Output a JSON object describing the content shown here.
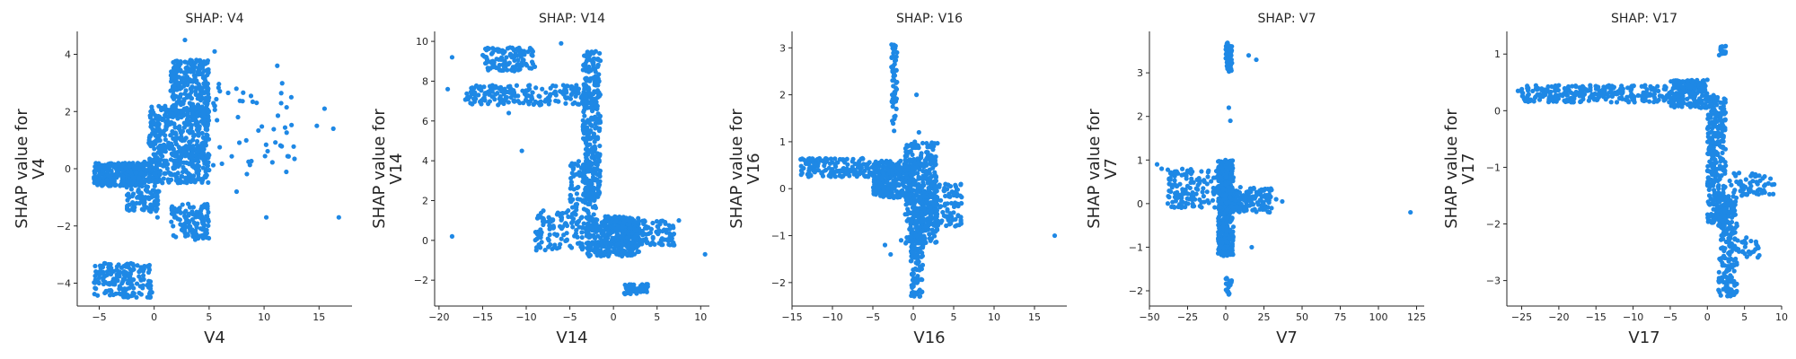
{
  "chart_data": [
    {
      "type": "scatter",
      "title": "SHAP: V4",
      "xlabel": "V4",
      "ylabel": [
        "SHAP value for",
        "V4"
      ],
      "xlim": [
        -7,
        18
      ],
      "ylim": [
        -4.8,
        4.8
      ],
      "xticks": [
        -5,
        0,
        5,
        10,
        15
      ],
      "yticks": [
        -4,
        -2,
        0,
        2,
        4
      ],
      "color": "#1e88e5",
      "clusters": [
        {
          "x": [
            -5.5,
            -1
          ],
          "y": [
            -0.6,
            0.2
          ],
          "n": 300
        },
        {
          "x": [
            -2.5,
            0.5
          ],
          "y": [
            -1.5,
            0.3
          ],
          "n": 160
        },
        {
          "x": [
            -0.5,
            5
          ],
          "y": [
            -0.5,
            2.2
          ],
          "n": 500
        },
        {
          "x": [
            1.5,
            5
          ],
          "y": [
            1.8,
            3.8
          ],
          "n": 260
        },
        {
          "x": [
            1.5,
            5
          ],
          "y": [
            -2.5,
            -1.2
          ],
          "n": 120
        },
        {
          "x": [
            -5.5,
            -0.2
          ],
          "y": [
            -4.5,
            -3.3
          ],
          "n": 170
        },
        {
          "x": [
            3,
            13
          ],
          "y": [
            -0.3,
            3
          ],
          "n": 80
        }
      ],
      "points": [
        [
          0.3,
          -1.7
        ],
        [
          7.5,
          -0.8
        ],
        [
          10.2,
          -1.7
        ],
        [
          15.5,
          2.1
        ],
        [
          16.3,
          1.4
        ],
        [
          16.8,
          -1.7
        ],
        [
          14.8,
          1.5
        ],
        [
          11.2,
          3.6
        ],
        [
          5.5,
          4.1
        ],
        [
          2.8,
          4.5
        ]
      ]
    },
    {
      "type": "scatter",
      "title": "SHAP: V14",
      "xlabel": "V14",
      "ylabel": [
        "SHAP value for",
        "V14"
      ],
      "xlim": [
        -20.5,
        11
      ],
      "ylim": [
        -3.3,
        10.5
      ],
      "xticks": [
        -20,
        -15,
        -10,
        -5,
        0,
        5,
        10
      ],
      "yticks": [
        -2,
        0,
        2,
        4,
        6,
        8,
        10
      ],
      "color": "#1e88e5",
      "clusters": [
        {
          "x": [
            -15,
            -9
          ],
          "y": [
            8.5,
            9.7
          ],
          "n": 120
        },
        {
          "x": [
            -17,
            -3
          ],
          "y": [
            6.8,
            7.8
          ],
          "n": 200
        },
        {
          "x": [
            -3.5,
            -1.5
          ],
          "y": [
            2,
            9.5
          ],
          "n": 320
        },
        {
          "x": [
            -9,
            -2
          ],
          "y": [
            -0.5,
            1.5
          ],
          "n": 150
        },
        {
          "x": [
            -3,
            3
          ],
          "y": [
            -0.8,
            1.2
          ],
          "n": 300
        },
        {
          "x": [
            -1,
            7
          ],
          "y": [
            -0.3,
            1
          ],
          "n": 180
        },
        {
          "x": [
            1,
            4
          ],
          "y": [
            -2.7,
            -2.2
          ],
          "n": 60
        },
        {
          "x": [
            -5,
            -2
          ],
          "y": [
            1.5,
            4
          ],
          "n": 80
        }
      ],
      "points": [
        [
          -18.5,
          9.2
        ],
        [
          -19,
          7.6
        ],
        [
          -18.5,
          0.2
        ],
        [
          -10.5,
          4.5
        ],
        [
          10.5,
          -0.7
        ],
        [
          7.5,
          1
        ],
        [
          -12,
          6.4
        ],
        [
          -6,
          9.9
        ]
      ]
    },
    {
      "type": "scatter",
      "title": "SHAP: V16",
      "xlabel": "V16",
      "ylabel": [
        "SHAP value for",
        "V16"
      ],
      "xlim": [
        -15,
        19
      ],
      "ylim": [
        -2.5,
        3.35
      ],
      "xticks": [
        -15,
        -10,
        -5,
        0,
        5,
        10,
        15
      ],
      "yticks": [
        -2,
        -1,
        0,
        1,
        2,
        3
      ],
      "color": "#1e88e5",
      "clusters": [
        {
          "x": [
            -14,
            -5
          ],
          "y": [
            0.25,
            0.65
          ],
          "n": 150
        },
        {
          "x": [
            -5,
            0
          ],
          "y": [
            -0.2,
            0.6
          ],
          "n": 280
        },
        {
          "x": [
            -1,
            3
          ],
          "y": [
            -1.2,
            1
          ],
          "n": 420
        },
        {
          "x": [
            -0.3,
            1.2
          ],
          "y": [
            -2.3,
            -0.5
          ],
          "n": 130
        },
        {
          "x": [
            -2.7,
            -2
          ],
          "y": [
            1.2,
            3.1
          ],
          "n": 60
        },
        {
          "x": [
            1,
            6
          ],
          "y": [
            -0.8,
            0.1
          ],
          "n": 120
        }
      ],
      "points": [
        [
          17.5,
          -1
        ],
        [
          0.7,
          1.2
        ],
        [
          0.4,
          2
        ],
        [
          -3.5,
          -1.2
        ],
        [
          -2.8,
          -1.4
        ],
        [
          -1.5,
          -1.1
        ]
      ]
    },
    {
      "type": "scatter",
      "title": "SHAP: V7",
      "xlabel": "V7",
      "ylabel": [
        "SHAP value for",
        "V7"
      ],
      "xlim": [
        -50,
        130
      ],
      "ylim": [
        -2.35,
        3.95
      ],
      "xticks": [
        -50,
        -25,
        0,
        25,
        50,
        75,
        100,
        125
      ],
      "yticks": [
        -2,
        -1,
        0,
        1,
        2,
        3
      ],
      "color": "#1e88e5",
      "clusters": [
        {
          "x": [
            -38,
            0
          ],
          "y": [
            -0.1,
            0.8
          ],
          "n": 150
        },
        {
          "x": [
            -5,
            5
          ],
          "y": [
            -1.2,
            1
          ],
          "n": 400
        },
        {
          "x": [
            0,
            30
          ],
          "y": [
            -0.2,
            0.4
          ],
          "n": 160
        },
        {
          "x": [
            0,
            4
          ],
          "y": [
            3,
            3.7
          ],
          "n": 60
        },
        {
          "x": [
            0,
            4
          ],
          "y": [
            -2.1,
            -1.7
          ],
          "n": 20
        }
      ],
      "points": [
        [
          -45,
          0.9
        ],
        [
          -42,
          0.8
        ],
        [
          121,
          -0.2
        ],
        [
          37,
          0.05
        ],
        [
          33,
          0.1
        ],
        [
          15,
          3.4
        ],
        [
          20,
          3.3
        ],
        [
          17,
          -1
        ],
        [
          25,
          0.3
        ],
        [
          2,
          2.2
        ],
        [
          3,
          1.9
        ]
      ]
    },
    {
      "type": "scatter",
      "title": "SHAP: V17",
      "xlabel": "V17",
      "ylabel": [
        "SHAP value for",
        "V17"
      ],
      "xlim": [
        -27,
        10
      ],
      "ylim": [
        -3.45,
        1.4
      ],
      "xticks": [
        -25,
        -20,
        -15,
        -10,
        -5,
        0,
        5,
        10
      ],
      "yticks": [
        -3,
        -2,
        -1,
        0,
        1
      ],
      "color": "#1e88e5",
      "clusters": [
        {
          "x": [
            -25,
            -5
          ],
          "y": [
            0.15,
            0.45
          ],
          "n": 280
        },
        {
          "x": [
            -5,
            0
          ],
          "y": [
            0.05,
            0.55
          ],
          "n": 180
        },
        {
          "x": [
            0,
            2.5
          ],
          "y": [
            -2,
            0.3
          ],
          "n": 300
        },
        {
          "x": [
            1.5,
            4
          ],
          "y": [
            -3.3,
            -1.5
          ],
          "n": 200
        },
        {
          "x": [
            3,
            9
          ],
          "y": [
            -1.5,
            -1.1
          ],
          "n": 60
        },
        {
          "x": [
            3,
            7
          ],
          "y": [
            -2.6,
            -2.2
          ],
          "n": 30
        },
        {
          "x": [
            1.5,
            2.5
          ],
          "y": [
            0.95,
            1.15
          ],
          "n": 20
        }
      ],
      "points": [
        [
          -25.5,
          0.35
        ],
        [
          9,
          -1.3
        ],
        [
          8.5,
          -1.2
        ],
        [
          6,
          -2.5
        ],
        [
          5,
          -2.3
        ]
      ]
    }
  ]
}
